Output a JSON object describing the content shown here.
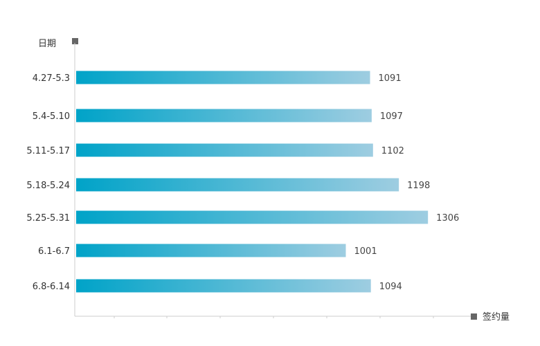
{
  "chart_data": {
    "type": "bar",
    "orientation": "horizontal",
    "ylabel": "日期",
    "xlabel": "签约量",
    "categories": [
      "4.27-5.3",
      "5.4-5.10",
      "5.11-5.17",
      "5.18-5.24",
      "5.25-5.31",
      "6.1-6.7",
      "6.8-6.14"
    ],
    "values": [
      1091,
      1097,
      1102,
      1198,
      1306,
      1001,
      1094
    ],
    "value_labels": [
      "1091",
      "1097",
      "1102",
      "1198",
      "1306",
      "1001",
      "1094"
    ],
    "xlim": [
      0,
      1470
    ],
    "grid": false,
    "legend": "none",
    "colors": {
      "bar_start": "#00a3c8",
      "bar_end": "#9ecde1",
      "axis": "#cccccc",
      "marker": "#666666"
    }
  }
}
